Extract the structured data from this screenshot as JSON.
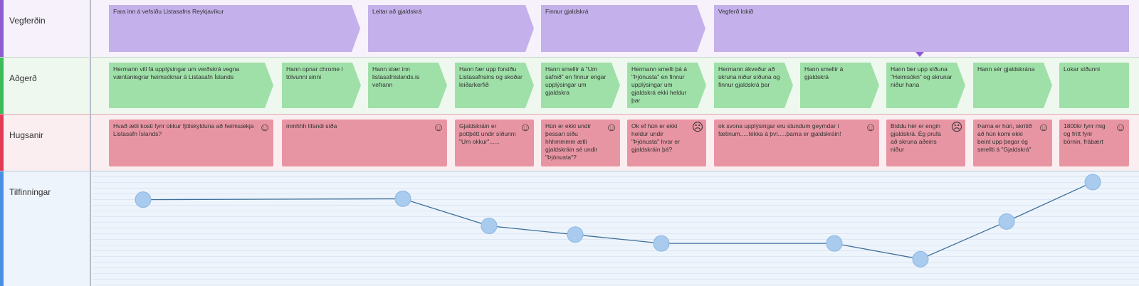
{
  "lanes": {
    "journey": "Vegferðin",
    "actions": "Aðgerð",
    "thoughts": "Hugsanir",
    "feelings": "Tilfinningar"
  },
  "stages": [
    "Fara inn á vefsíðu Listasafns Reykjavíkur",
    "Leitar að gjaldskrá",
    "Finnur gjaldskrá",
    "Vegferð lokið"
  ],
  "actions": [
    "Hermann vill fá upplýsingar um verðskrá vegna væntanlegrar heimsóknar á Listasafn Íslands",
    "Hann opnar chrome í tölvunni sinni",
    "Hann slær inn listasafnislands.is vefrann",
    "Hann fær upp forsíðu Listasafnsins og skoðar leiðarkerfið",
    "Hann smellir á \"Um safnið\" en finnur engar upplýsingar um gjaldskra",
    "Hermann smelli þá á \"Þjónusta\" en finnur upplýsingar um gjaldskrá ekki heldur þar",
    "Hermann ákveður að skruna niður síðuna og finnur gjaldskrá þar",
    "Hann smellir á gjaldskrá",
    "Hann fær upp síðuna \"Heimsókn\" og skrunar niður hana",
    "Hann sér gjaldskrána",
    "Lokar síðunni"
  ],
  "thoughts": [
    {
      "text": "Hvað ætli kosti fyrir okkur fjölskylduna að heimsækja Listasafn Íslands?",
      "mood": "happy",
      "icon": "☺"
    },
    {
      "text": "mmhhh lifandi síða",
      "mood": "happy",
      "icon": "☺"
    },
    {
      "text": "Gjaldskráin er pottþétt undir síðunni \"Um okkur\"......",
      "mood": "happy",
      "icon": "☺"
    },
    {
      "text": "Hún er ekki undir þessari síðu hhhmmmm ætli gjaldskráin sé undir \"Þjónusta\"?",
      "mood": "happy",
      "icon": "☺"
    },
    {
      "text": "Ok ef hún er ekki heldur undir \"Þjónusta\" hvar er gjaldskráin þá?",
      "mood": "sad",
      "icon": "☹"
    },
    {
      "text": "ok svona upplýsingar eru stundum geymdar í fætinum.....tékka á því.....þarna er gjaldskráin!",
      "mood": "happy",
      "icon": "☺"
    },
    {
      "text": "Bíddu hér er engin gjaldskrá. Ég prufa að skruna aðeins niður",
      "mood": "sad",
      "icon": "☹"
    },
    {
      "text": "Þarna er hún, skrítið að hún komi ekki beint upp þegar ég smellti á \"Gjaldskrá\"",
      "mood": "happy",
      "icon": "☺"
    },
    {
      "text": "1800kr fyrir mig og frítt fyrir börnin, frábært",
      "mood": "happy",
      "icon": "☺"
    }
  ],
  "emotion_points": [
    0.8,
    0.81,
    0.5,
    0.4,
    0.3,
    0.3,
    0.12,
    0.55,
    1.0
  ],
  "colors": {
    "line": "#3e6f99",
    "point": "#a8cbee",
    "point_stroke": "#8db7e3"
  }
}
